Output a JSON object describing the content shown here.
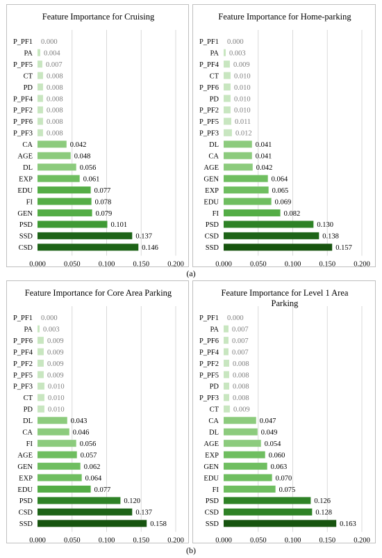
{
  "subfigure_labels": [
    "(a)",
    "(b)"
  ],
  "chart_data": [
    {
      "type": "bar",
      "orientation": "horizontal",
      "title": "Feature Importance for Cruising",
      "categories": [
        "P_PF1",
        "PA",
        "P_PF5",
        "CT",
        "PD",
        "P_PF4",
        "P_PF2",
        "P_PF6",
        "P_PF3",
        "CA",
        "AGE",
        "DL",
        "EXP",
        "EDU",
        "FI",
        "GEN",
        "PSD",
        "SSD",
        "CSD"
      ],
      "values": [
        0.0,
        0.004,
        0.007,
        0.008,
        0.008,
        0.008,
        0.008,
        0.008,
        0.008,
        0.042,
        0.048,
        0.056,
        0.061,
        0.077,
        0.078,
        0.079,
        0.101,
        0.137,
        0.146
      ],
      "value_labels": [
        "0.000",
        "0.004",
        "0.007",
        "0.008",
        "0.008",
        "0.008",
        "0.008",
        "0.008",
        "0.008",
        "0.042",
        "0.048",
        "0.056",
        "0.061",
        "0.077",
        "0.078",
        "0.079",
        "0.101",
        "0.137",
        "0.146"
      ],
      "xticks": [
        "0.000",
        "0.050",
        "0.100",
        "0.150",
        "0.200"
      ],
      "xlim": [
        0,
        0.2
      ],
      "grid": "vertical",
      "legend": "none"
    },
    {
      "type": "bar",
      "orientation": "horizontal",
      "title": "Feature Importance for Home-parking",
      "categories": [
        "P_PF1",
        "PA",
        "P_PF4",
        "CT",
        "P_PF6",
        "PD",
        "P_PF2",
        "P_PF5",
        "P_PF3",
        "DL",
        "CA",
        "AGE",
        "GEN",
        "EXP",
        "EDU",
        "FI",
        "PSD",
        "CSD",
        "SSD"
      ],
      "values": [
        0.0,
        0.003,
        0.009,
        0.01,
        0.01,
        0.01,
        0.01,
        0.011,
        0.012,
        0.041,
        0.041,
        0.042,
        0.064,
        0.065,
        0.069,
        0.082,
        0.13,
        0.138,
        0.157
      ],
      "value_labels": [
        "0.000",
        "0.003",
        "0.009",
        "0.010",
        "0.010",
        "0.010",
        "0.010",
        "0.011",
        "0.012",
        "0.041",
        "0.041",
        "0.042",
        "0.064",
        "0.065",
        "0.069",
        "0.082",
        "0.130",
        "0.138",
        "0.157"
      ],
      "xticks": [
        "0.000",
        "0.050",
        "0.100",
        "0.150",
        "0.200"
      ],
      "xlim": [
        0,
        0.2
      ],
      "grid": "vertical",
      "legend": "none"
    },
    {
      "type": "bar",
      "orientation": "horizontal",
      "title": "Feature Importance for Core Area Parking",
      "categories": [
        "P_PF1",
        "PA",
        "P_PF6",
        "P_PF4",
        "P_PF2",
        "P_PF5",
        "P_PF3",
        "CT",
        "PD",
        "DL",
        "CA",
        "FI",
        "AGE",
        "GEN",
        "EXP",
        "EDU",
        "PSD",
        "CSD",
        "SSD"
      ],
      "values": [
        0.0,
        0.003,
        0.009,
        0.009,
        0.009,
        0.009,
        0.01,
        0.01,
        0.01,
        0.043,
        0.046,
        0.056,
        0.057,
        0.062,
        0.064,
        0.077,
        0.12,
        0.137,
        0.158
      ],
      "value_labels": [
        "0.000",
        "0.003",
        "0.009",
        "0.009",
        "0.009",
        "0.009",
        "0.010",
        "0.010",
        "0.010",
        "0.043",
        "0.046",
        "0.056",
        "0.057",
        "0.062",
        "0.064",
        "0.077",
        "0.120",
        "0.137",
        "0.158"
      ],
      "xticks": [
        "0.000",
        "0.050",
        "0.100",
        "0.150",
        "0.200"
      ],
      "xlim": [
        0,
        0.2
      ],
      "grid": "vertical",
      "legend": "none"
    },
    {
      "type": "bar",
      "orientation": "horizontal",
      "title": "Feature Importance for Level 1 Area Parking",
      "title_lines": [
        "Feature Importance for Level 1 Area",
        "Parking"
      ],
      "categories": [
        "P_PF1",
        "PA",
        "P_PF6",
        "P_PF4",
        "P_PF2",
        "P_PF5",
        "PD",
        "P_PF3",
        "CT",
        "CA",
        "DL",
        "AGE",
        "EXP",
        "GEN",
        "EDU",
        "FI",
        "PSD",
        "CSD",
        "SSD"
      ],
      "values": [
        0.0,
        0.007,
        0.007,
        0.007,
        0.008,
        0.008,
        0.008,
        0.008,
        0.009,
        0.047,
        0.049,
        0.054,
        0.06,
        0.063,
        0.07,
        0.075,
        0.126,
        0.128,
        0.163
      ],
      "value_labels": [
        "0.000",
        "0.007",
        "0.007",
        "0.007",
        "0.008",
        "0.008",
        "0.008",
        "0.008",
        "0.009",
        "0.047",
        "0.049",
        "0.054",
        "0.060",
        "0.063",
        "0.070",
        "0.075",
        "0.126",
        "0.128",
        "0.163"
      ],
      "xticks": [
        "0.000",
        "0.050",
        "0.100",
        "0.150",
        "0.200"
      ],
      "xlim": [
        0,
        0.2
      ],
      "grid": "vertical",
      "legend": "none"
    }
  ],
  "colors": {
    "bar_shades": [
      "#c8e6c0",
      "#a5d79a",
      "#8ccb7d",
      "#6fbe60",
      "#54ad46",
      "#3f9a34",
      "#2e8226",
      "#1e6418",
      "#17540f"
    ],
    "value_label_light": "#7f7f7f",
    "value_label_dark": "#000000",
    "gridline": "#d9d9d9",
    "border": "#bfbfbf"
  }
}
